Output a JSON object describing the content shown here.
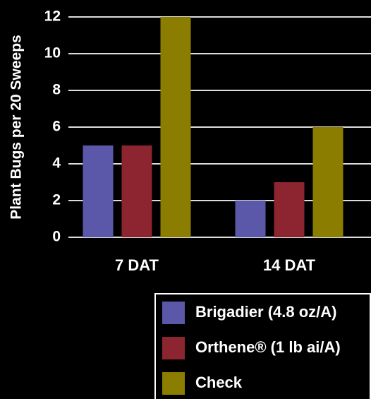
{
  "chart_data": {
    "type": "bar",
    "y_label": "Plant Bugs per 20 Sweeps",
    "categories": [
      "7 DAT",
      "14 DAT"
    ],
    "series": [
      {
        "name": "Brigadier (4.8 oz/A)",
        "color": "#5b58aa",
        "values": [
          5,
          2
        ]
      },
      {
        "name": "Orthene® (1 lb ai/A)",
        "color": "#8c2530",
        "values": [
          5,
          3
        ]
      },
      {
        "name": "Check",
        "color": "#8a7d00",
        "values": [
          12,
          6
        ]
      }
    ],
    "ylim": [
      0,
      12
    ],
    "yticks": [
      0,
      2,
      4,
      6,
      8,
      10,
      12
    ],
    "grid": true,
    "legend": "bottom-right"
  }
}
